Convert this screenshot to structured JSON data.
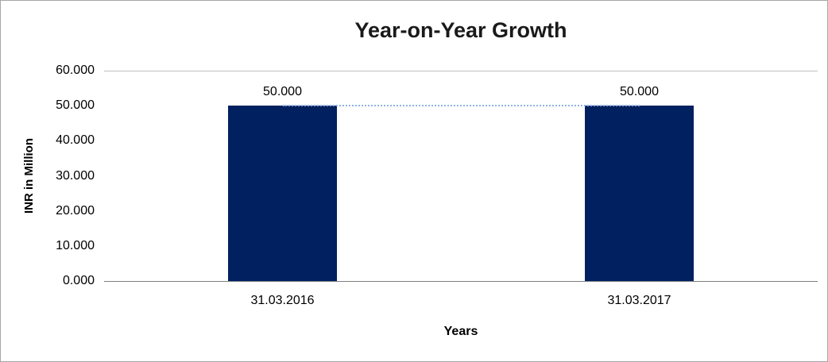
{
  "chart_data": {
    "type": "bar",
    "title": "Year-on-Year Growth",
    "xlabel": "Years",
    "ylabel": "INR in Million",
    "categories": [
      "31.03.2016",
      "31.03.2017"
    ],
    "series": [
      {
        "name": "INR in Million",
        "values": [
          50.0,
          50.0
        ]
      }
    ],
    "data_labels": [
      "50.000",
      "50.000"
    ],
    "ytick_labels": [
      "0.000",
      "10.000",
      "20.000",
      "30.000",
      "40.000",
      "50.000",
      "60.000"
    ],
    "ylim": [
      0,
      60
    ],
    "grid": false,
    "legend": "none",
    "bar_color": "#002060",
    "trendline": {
      "style": "dotted",
      "color": "#8EB4E3",
      "y": 50
    }
  }
}
